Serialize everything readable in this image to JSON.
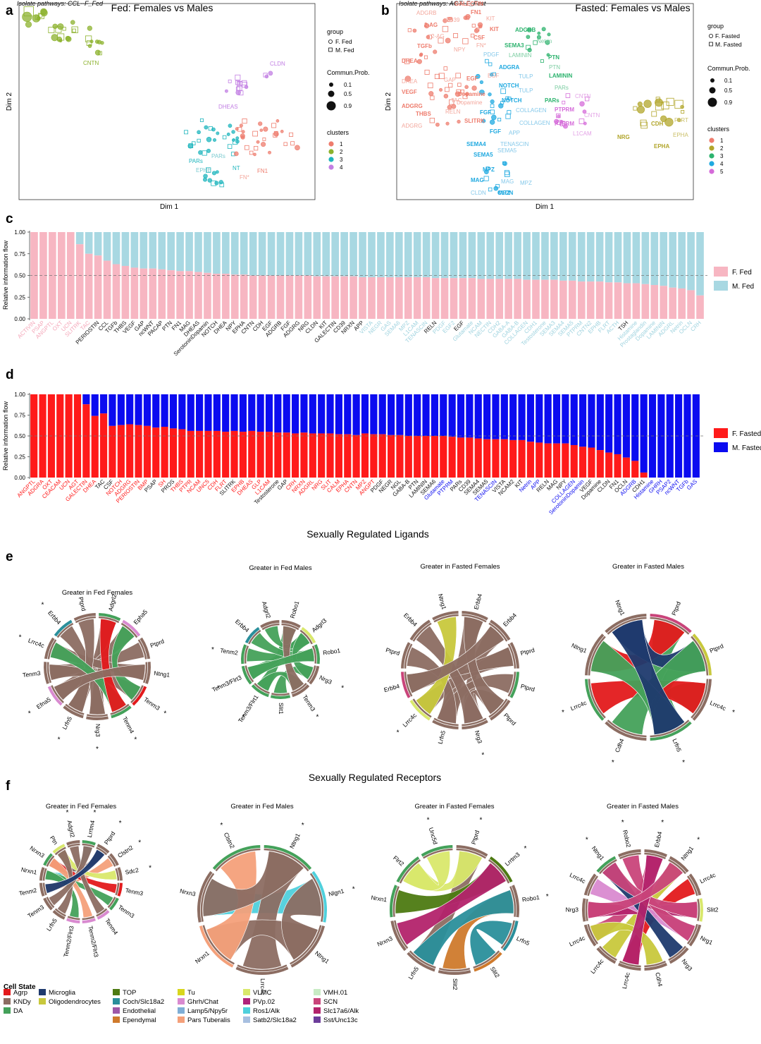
{
  "panels": {
    "a": {
      "letter": "a",
      "isolate_note": "Isolate pathways: CCL--F_Fed",
      "title": "Fed: Females vs Males",
      "xlabel": "Dim 1",
      "ylabel": "Dim 2",
      "legend": {
        "group_title": "group",
        "groups": [
          "F. Fed",
          "M. Fed"
        ],
        "prob_title": "Commun.Prob.",
        "probs": [
          "0.1",
          "0.5",
          "0.9"
        ],
        "cluster_title": "clusters",
        "clusters": [
          {
            "label": "1",
            "color": "#ee7c6d"
          },
          {
            "label": "2",
            "color": "#8cb22d"
          },
          {
            "label": "3",
            "color": "#1eb5bd"
          },
          {
            "label": "4",
            "color": "#c27fe3"
          }
        ]
      },
      "labels": [
        {
          "text": "CNTN",
          "cluster": 2
        },
        {
          "text": "CLDN",
          "cluster": 4
        },
        {
          "text": "DHEAS",
          "cluster": 4
        },
        {
          "text": "PARs",
          "cluster": 3
        },
        {
          "text": "PARs",
          "cluster": 3
        },
        {
          "text": "EPHB",
          "cluster": 3
        },
        {
          "text": "NT",
          "cluster": 3
        },
        {
          "text": "FN1",
          "cluster": 1
        },
        {
          "text": "FN*",
          "cluster": 1
        }
      ]
    },
    "b": {
      "letter": "b",
      "isolate_note": "Isolate pathways: AGT--F_Fast",
      "title": "Fasted: Females vs Males",
      "xlabel": "Dim 1",
      "ylabel": "Dim 2",
      "legend": {
        "group_title": "group",
        "groups": [
          "F. Fasted",
          "M. Fasted"
        ],
        "prob_title": "Commun.Prob.",
        "probs": [
          "0.1",
          "0.5",
          "0.9"
        ],
        "cluster_title": "clusters",
        "clusters": [
          {
            "label": "1",
            "color": "#ee7c6d"
          },
          {
            "label": "2",
            "color": "#b1a52a"
          },
          {
            "label": "3",
            "color": "#2db36e"
          },
          {
            "label": "4",
            "color": "#1fa9e0"
          },
          {
            "label": "5",
            "color": "#d56bd9"
          }
        ]
      },
      "labels": [
        {
          "text": "GALECTIN",
          "cluster": 1
        },
        {
          "text": "ADGRB",
          "cluster": 1
        },
        {
          "text": "FN1",
          "cluster": 1
        },
        {
          "text": "KIT",
          "cluster": 1
        },
        {
          "text": "2-AG",
          "cluster": 1
        },
        {
          "text": "CD39",
          "cluster": 1
        },
        {
          "text": "KIT",
          "cluster": 1
        },
        {
          "text": "2-AG",
          "cluster": 1
        },
        {
          "text": "CSF",
          "cluster": 1
        },
        {
          "text": "FN*",
          "cluster": 1
        },
        {
          "text": "TGFb",
          "cluster": 1
        },
        {
          "text": "NPY",
          "cluster": 1
        },
        {
          "text": "DHEA",
          "cluster": 1
        },
        {
          "text": "DHEA",
          "cluster": 1
        },
        {
          "text": "VEGF",
          "cluster": 1
        },
        {
          "text": "GAP",
          "cluster": 1
        },
        {
          "text": "EGF",
          "cluster": 1
        },
        {
          "text": "EGF",
          "cluster": 1
        },
        {
          "text": "Dopamine",
          "cluster": 1
        },
        {
          "text": "Dopamine",
          "cluster": 1
        },
        {
          "text": "ADGRG",
          "cluster": 1
        },
        {
          "text": "TAC",
          "cluster": 1
        },
        {
          "text": "THBS",
          "cluster": 1
        },
        {
          "text": "RELN",
          "cluster": 1
        },
        {
          "text": "SLITRK",
          "cluster": 1
        },
        {
          "text": "ADGRG",
          "cluster": 1
        },
        {
          "text": "ADGRB",
          "cluster": 3
        },
        {
          "text": "Netrin",
          "cluster": 3
        },
        {
          "text": "SEMA3",
          "cluster": 3
        },
        {
          "text": "LAMININ",
          "cluster": 3
        },
        {
          "text": "PTN",
          "cluster": 3
        },
        {
          "text": "PTN",
          "cluster": 3
        },
        {
          "text": "LAMININ",
          "cluster": 3
        },
        {
          "text": "PARs",
          "cluster": 3
        },
        {
          "text": "PARs",
          "cluster": 3
        },
        {
          "text": "PDGF",
          "cluster": 4
        },
        {
          "text": "ADGRA",
          "cluster": 4
        },
        {
          "text": "TULP",
          "cluster": 4
        },
        {
          "text": "NOTCH",
          "cluster": 4
        },
        {
          "text": "TULP",
          "cluster": 4
        },
        {
          "text": "NOTCH",
          "cluster": 4
        },
        {
          "text": "COLLAGEN",
          "cluster": 4
        },
        {
          "text": "FGF",
          "cluster": 4
        },
        {
          "text": "COLLAGEN",
          "cluster": 4
        },
        {
          "text": "FGF",
          "cluster": 4
        },
        {
          "text": "APP",
          "cluster": 4
        },
        {
          "text": "SEMA4",
          "cluster": 4
        },
        {
          "text": "TENASCIN",
          "cluster": 4
        },
        {
          "text": "SEMA5",
          "cluster": 4
        },
        {
          "text": "SEMA5",
          "cluster": 4
        },
        {
          "text": "MPZ",
          "cluster": 4
        },
        {
          "text": "MPZ",
          "cluster": 4
        },
        {
          "text": "MAG",
          "cluster": 4
        },
        {
          "text": "MAG",
          "cluster": 4
        },
        {
          "text": "MPZ",
          "cluster": 4
        },
        {
          "text": "CLDN",
          "cluster": 4
        },
        {
          "text": "CLDN",
          "cluster": 4
        },
        {
          "text": "CNTN",
          "cluster": 5
        },
        {
          "text": "PTPRM",
          "cluster": 5
        },
        {
          "text": "CNTN",
          "cluster": 5
        },
        {
          "text": "PTPRM",
          "cluster": 5
        },
        {
          "text": "L1CAM",
          "cluster": 5
        },
        {
          "text": "CDH",
          "cluster": 2
        },
        {
          "text": "FLRT",
          "cluster": 2
        },
        {
          "text": "NRG",
          "cluster": 2
        },
        {
          "text": "EPHA",
          "cluster": 2
        },
        {
          "text": "EPHA",
          "cluster": 2
        }
      ]
    },
    "c": {
      "letter": "c",
      "ylabel": "Relative information flow",
      "yticks": [
        "0.00",
        "0.25",
        "0.50",
        "0.75",
        "1.00"
      ],
      "legend": [
        {
          "label": "F. Fed",
          "color": "#f7b6c2"
        },
        {
          "label": "M. Fed",
          "color": "#a8d8e2"
        }
      ],
      "color_f": "#f7b6c2",
      "color_m": "#a8d8e2",
      "label_colors": {
        "f": "#f4a6b8",
        "both": "#111111",
        "m": "#9fd3df"
      }
    },
    "d": {
      "letter": "d",
      "ylabel": "Relative information flow",
      "yticks": [
        "0.00",
        "0.25",
        "0.50",
        "0.75",
        "1.00"
      ],
      "legend": [
        {
          "label": "F. Fasted",
          "color": "#ff1a1a"
        },
        {
          "label": "M. Fasted",
          "color": "#0b0bf0"
        }
      ],
      "color_f": "#ff1a1a",
      "color_m": "#0b0bf0",
      "label_colors": {
        "f": "#ff1a1a",
        "both": "#111111",
        "m": "#0b0bf0"
      }
    },
    "e": {
      "letter": "e",
      "section_title": "Sexually Regulated Ligands",
      "chords": [
        {
          "title": "Greater in Fed Females",
          "labels": [
            "Adgrl2",
            "Epha5",
            "Ptprd",
            "Ntng1",
            "Tenm3",
            "Tenm4",
            "Nrg3",
            "Lrfn5",
            "Efna5",
            "Tenm3",
            "Lrrc4c",
            "Erbb4",
            "Ptprd"
          ]
        },
        {
          "title": "Greater in Fed Males",
          "labels": [
            "Robo1",
            "Adgrl3",
            "Robo1",
            "Nrg3",
            "Tenm3",
            "Slit1",
            "Tenm3/Flrt1",
            "Tenm3/Flrt3",
            "Tenm2",
            "Erbb4",
            "Adgrl2"
          ]
        },
        {
          "title": "Greater in Fasted Females",
          "labels": [
            "Erbb4",
            "Erbb4",
            "Ptprd",
            "Ptprd",
            "Ptprd",
            "Nrg3",
            "Lrfn5",
            "Lrrc4c",
            "Erbb4",
            "Ptprd",
            "Erbb4",
            "Ntng1"
          ]
        },
        {
          "title": "Greater in Fasted Males",
          "labels": [
            "Ptprd",
            "Ptprd",
            "Lrrc4c",
            "Lrfn5",
            "Cdh4",
            "Lrrc4c",
            "Ntng1",
            "Ntng1"
          ]
        }
      ]
    },
    "f": {
      "letter": "f",
      "section_title": "Sexually Regulated Receptors",
      "chords": [
        {
          "title": "Greater in Fed Females",
          "labels": [
            "Lrrtm4",
            "Ptprd",
            "Clstn2",
            "Sdc2",
            "Tenm3",
            "Tenm3",
            "Tenm4",
            "Tenm2/Flrt3",
            "Tenm2/Flrt3",
            "Lrfn5",
            "Tenm3",
            "Tenm2",
            "Nrxn1",
            "Nrxn3",
            "Ptn",
            "Adgrl2"
          ]
        },
        {
          "title": "Greater in Fed Males",
          "labels": [
            "Ntng1",
            "Nlgn1",
            "Ntng1",
            "Lrrc4c",
            "Nrxn1",
            "Nrxn3",
            "Clstn2"
          ]
        },
        {
          "title": "Greater in Fasted Females",
          "labels": [
            "Ptprd",
            "Lrrtm3",
            "Robo1",
            "Lrfn5",
            "Slit2",
            "Slit2",
            "Lrfn5",
            "Nrxn3",
            "Nrxn1",
            "Flrt2",
            "Unc5d"
          ]
        },
        {
          "title": "Greater in Fasted Males",
          "labels": [
            "Erbb4",
            "Ntng1",
            "Lrrc4c",
            "Slit2",
            "Nrg1",
            "Nrg3",
            "Cdh4",
            "Lrrc4c",
            "Lrrc4c",
            "Lrrc4c",
            "Nrg3",
            "Lrrc4c",
            "Ntng1",
            "Robo2"
          ]
        }
      ]
    }
  },
  "cell_state_legend": {
    "title": "Cell State",
    "items": [
      {
        "label": "Agrp",
        "color": "#e31a1c"
      },
      {
        "label": "KNDy",
        "color": "#8c6d62"
      },
      {
        "label": "DA",
        "color": "#44a15a"
      },
      {
        "label": "Microglia",
        "color": "#1f3a6e"
      },
      {
        "label": "Oligodendrocytes",
        "color": "#c8c83c"
      },
      {
        "label": "TOP",
        "color": "#4d7a12"
      },
      {
        "label": "Coch/Slc18a2",
        "color": "#2a8f9b"
      },
      {
        "label": "Endothelial",
        "color": "#9e58a8"
      },
      {
        "label": "Ependymal",
        "color": "#cf7a2c"
      },
      {
        "label": "Tu",
        "color": "#d8d61e"
      },
      {
        "label": "Ghrh/Chat",
        "color": "#d98ad0"
      },
      {
        "label": "Lamp5/Npy5r",
        "color": "#7faed6"
      },
      {
        "label": "Pars Tuberalis",
        "color": "#f4a07a"
      },
      {
        "label": "VLMC",
        "color": "#d9e86c"
      },
      {
        "label": "PVp.02",
        "color": "#b0227a"
      },
      {
        "label": "Ros1/Alk",
        "color": "#4fd0dc"
      },
      {
        "label": "Satb2/Slc18a2",
        "color": "#a7bfe0"
      },
      {
        "label": "VMH.01",
        "color": "#c8ebc4"
      },
      {
        "label": "SCN",
        "color": "#c9447a"
      },
      {
        "label": "Slc17a6/Alk",
        "color": "#b3236b"
      },
      {
        "label": "Sst/Unc13c",
        "color": "#6c3d9a"
      }
    ]
  }
}
